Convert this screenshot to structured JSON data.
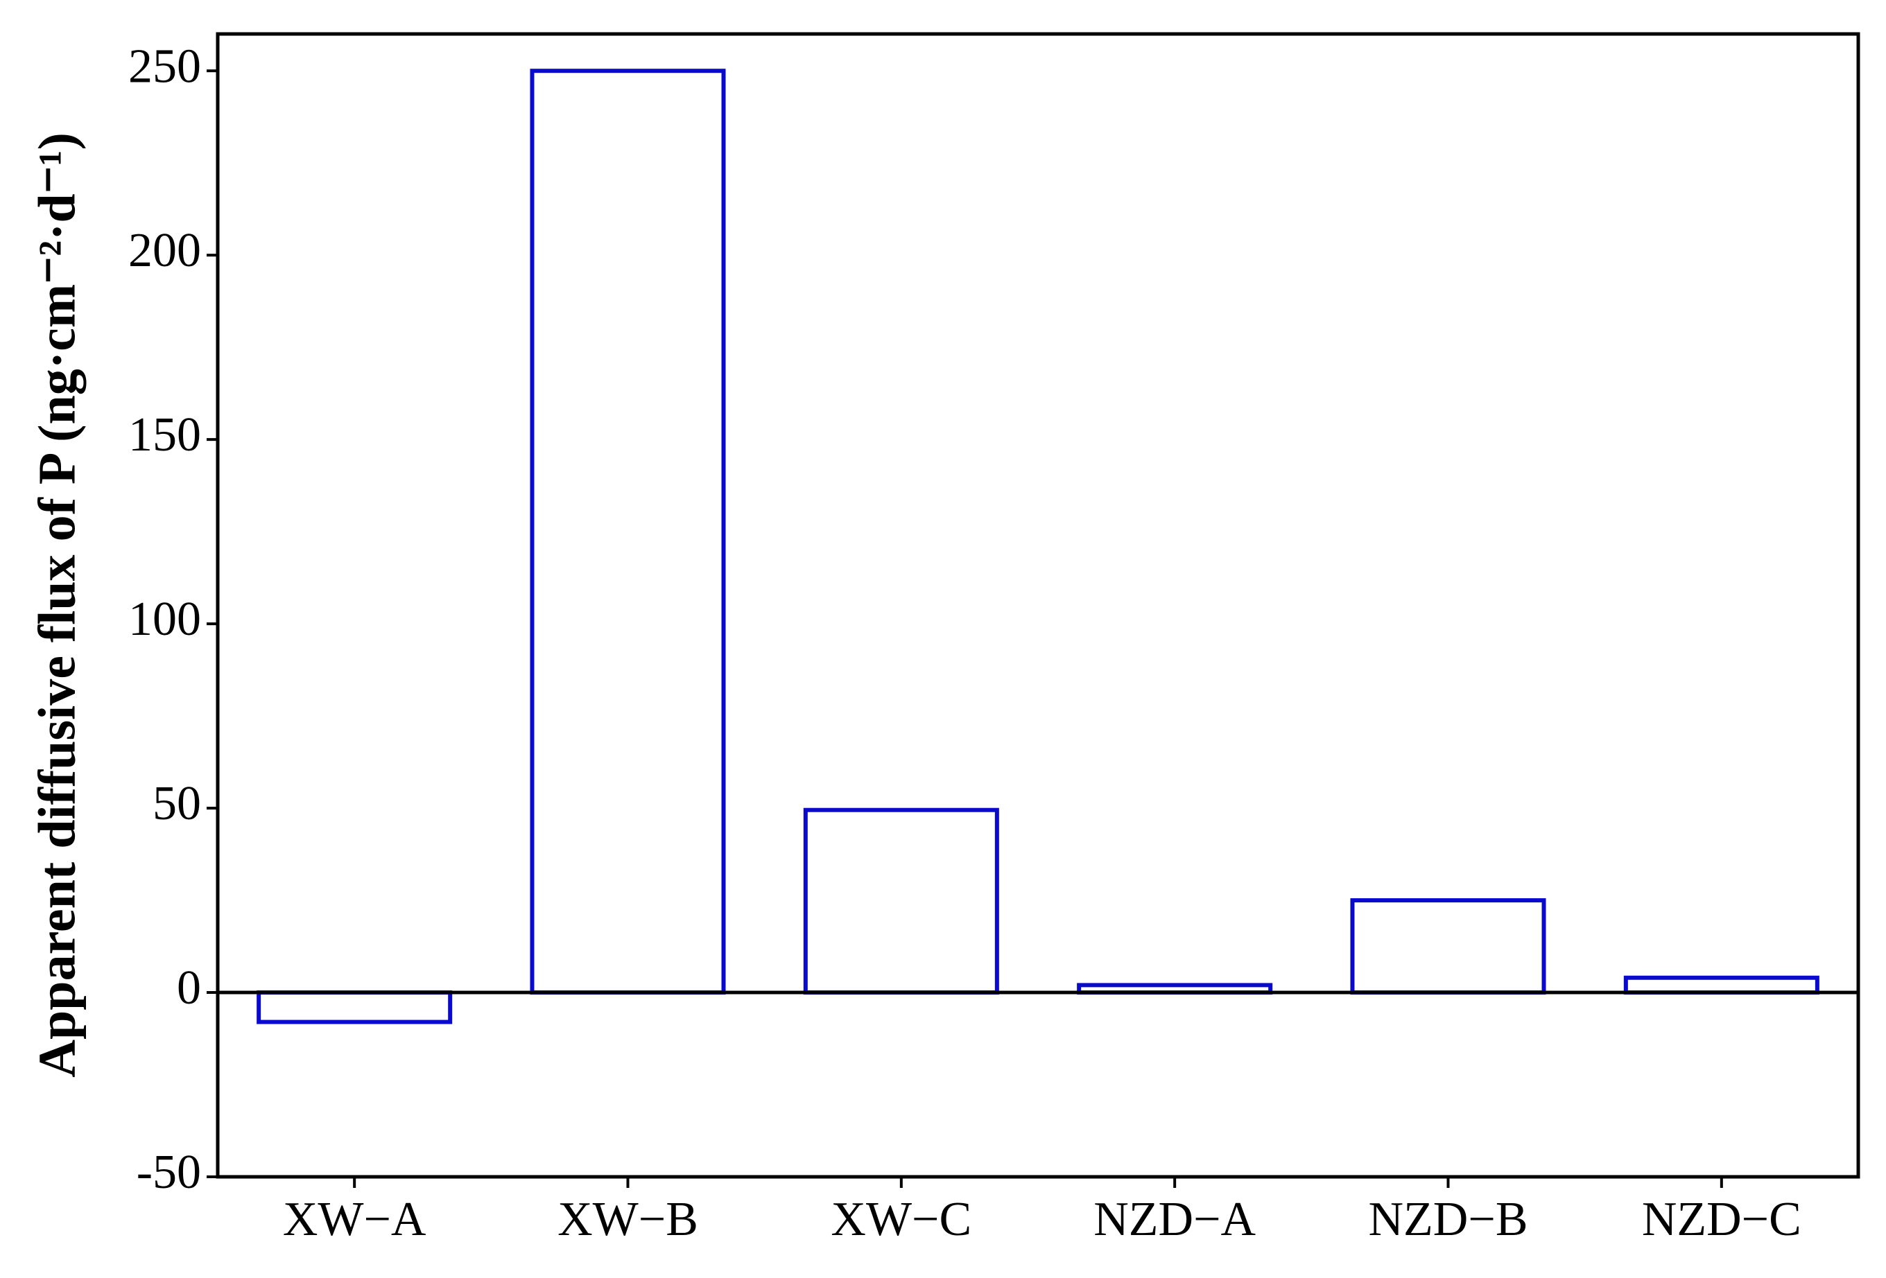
{
  "chart_data": {
    "type": "bar",
    "y_label": "Apparent diffusive flux of P (ng·cm⁻²·d⁻¹)",
    "categories": [
      "XW−A",
      "XW−B",
      "XW−C",
      "NZD−A",
      "NZD−B",
      "NZD−C"
    ],
    "values": [
      -8,
      250,
      49.5,
      2,
      25,
      4
    ],
    "color": "#0a0acc",
    "ylim": [
      -50,
      260
    ],
    "yticks": [
      -50,
      0,
      50,
      100,
      150,
      200,
      250
    ],
    "grid": false
  }
}
